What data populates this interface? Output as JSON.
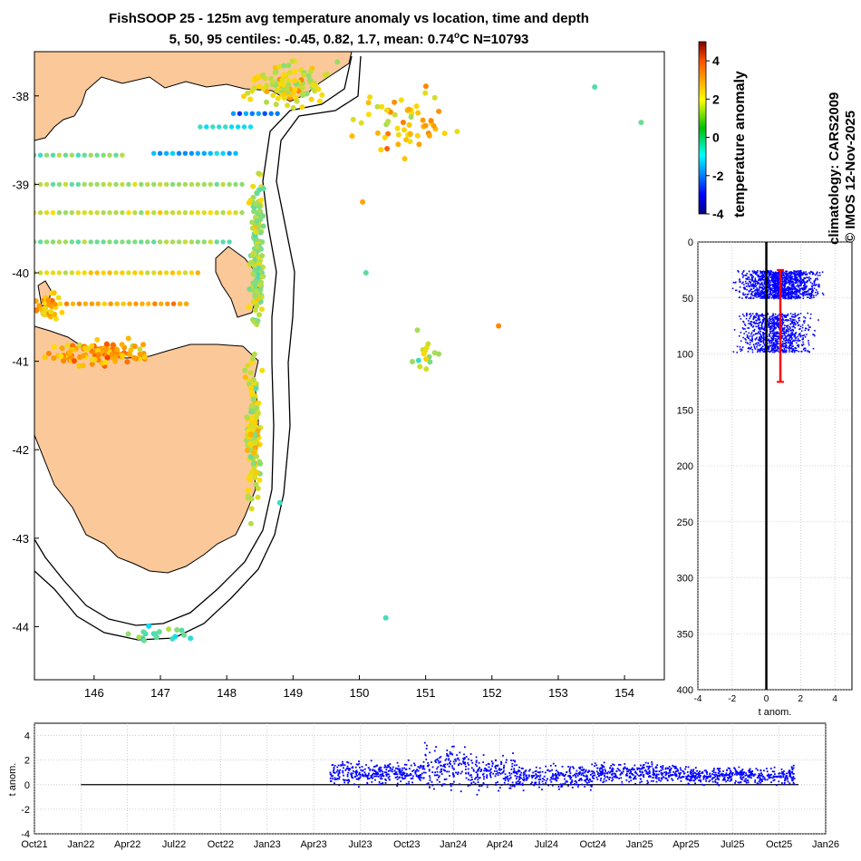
{
  "header": {
    "title_line1": "FishSOOP 25 - 125m avg temperature anomaly vs location, time and depth",
    "title_line2_prefix": "5, 50, 95 centiles: -0.45, 0.82, 1.7, mean: 0.74",
    "title_line2_sup": "o",
    "title_line2_suffix": "C N=10793"
  },
  "side_labels": {
    "colorbar_label": "temperature anomaly",
    "climatology": "climatology: CARS2009",
    "credit": "© IMOS 12-Nov-2025"
  },
  "colors": {
    "land": "#fbc899",
    "ocean": "#ffffff",
    "points": "#0000ff",
    "median_bar": "#ff0000",
    "zero_line": "#000000"
  },
  "chart_data": [
    {
      "type": "scatter",
      "name": "map",
      "xlim": [
        145.1,
        154.6
      ],
      "ylim": [
        -44.6,
        -37.5
      ],
      "xticks": [
        146,
        147,
        148,
        149,
        150,
        151,
        152,
        153,
        154
      ],
      "yticks": [
        -38,
        -39,
        -40,
        -41,
        -42,
        -43,
        -44
      ],
      "colormap": "jet",
      "clim": [
        -4,
        5
      ],
      "colorbar_ticks": [
        4,
        2,
        0,
        -2,
        -4
      ],
      "tracks": [
        {
          "lat": -38.2,
          "lon_start": 148.1,
          "lon_end": 148.8,
          "anomaly": -1.5
        },
        {
          "lat": -38.35,
          "lon_start": 147.6,
          "lon_end": 148.4,
          "anomaly": -0.5
        },
        {
          "lat": -38.65,
          "lon_start": 146.9,
          "lon_end": 148.2,
          "anomaly": -1.0
        },
        {
          "lat": -38.67,
          "lon_start": 145.0,
          "lon_end": 146.5,
          "anomaly": 0.5
        },
        {
          "lat": -39.0,
          "lon_start": 145.0,
          "lon_end": 148.3,
          "anomaly": 0.8
        },
        {
          "lat": -39.32,
          "lon_start": 145.0,
          "lon_end": 148.3,
          "anomaly": 1.2
        },
        {
          "lat": -39.65,
          "lon_start": 145.0,
          "lon_end": 148.1,
          "anomaly": 0.6
        },
        {
          "lat": -40.0,
          "lon_start": 145.0,
          "lon_end": 147.6,
          "anomaly": 1.6
        },
        {
          "lat": -40.35,
          "lon_start": 145.3,
          "lon_end": 147.4,
          "anomaly": 2.0
        }
      ],
      "clusters": [
        {
          "lon": 148.9,
          "lat": -37.9,
          "spread_lon": 0.9,
          "spread_lat": 0.35,
          "count": 110,
          "anomaly": 1.5
        },
        {
          "lon": 150.7,
          "lat": -38.3,
          "spread_lon": 1.0,
          "spread_lat": 0.5,
          "count": 60,
          "anomaly": 1.8
        },
        {
          "lon": 148.45,
          "lat": -39.8,
          "spread_lon": 0.15,
          "spread_lat": 1.2,
          "count": 150,
          "anomaly": 0.8
        },
        {
          "lon": 146.0,
          "lat": -40.9,
          "spread_lon": 1.0,
          "spread_lat": 0.2,
          "count": 120,
          "anomaly": 2.2
        },
        {
          "lon": 145.3,
          "lat": -40.4,
          "spread_lon": 0.25,
          "spread_lat": 0.2,
          "count": 40,
          "anomaly": 2.0
        },
        {
          "lon": 148.4,
          "lat": -41.8,
          "spread_lon": 0.15,
          "spread_lat": 1.1,
          "count": 130,
          "anomaly": 1.3
        },
        {
          "lon": 151.0,
          "lat": -40.9,
          "spread_lon": 0.4,
          "spread_lat": 0.3,
          "count": 15,
          "anomaly": 1.0
        },
        {
          "lon": 147.0,
          "lat": -44.1,
          "spread_lon": 1.0,
          "spread_lat": 0.15,
          "count": 20,
          "anomaly": 0.2
        }
      ],
      "isolated_points": [
        {
          "lon": 153.55,
          "lat": -37.9,
          "anomaly": 0.1
        },
        {
          "lon": 154.25,
          "lat": -38.3,
          "anomaly": 0.3
        },
        {
          "lon": 150.1,
          "lat": -40.0,
          "anomaly": 0.2
        },
        {
          "lon": 150.4,
          "lat": -43.9,
          "anomaly": 0.0
        },
        {
          "lon": 148.8,
          "lat": -42.6,
          "anomaly": -0.1
        },
        {
          "lon": 152.1,
          "lat": -40.6,
          "anomaly": 2.5
        },
        {
          "lon": 150.05,
          "lat": -39.2,
          "anomaly": 2.2
        }
      ]
    },
    {
      "type": "scatter",
      "name": "depth_profile",
      "xlabel": "t anom.",
      "xlim": [
        -4,
        5
      ],
      "ylim": [
        0,
        400
      ],
      "xticks": [
        -4,
        -2,
        0,
        2,
        4
      ],
      "yticks": [
        0,
        50,
        100,
        150,
        200,
        250,
        300,
        350,
        400
      ],
      "clusters": [
        {
          "depth_min": 25,
          "depth_max": 50,
          "t_min": -2.0,
          "t_max": 3.5,
          "count": 1300
        },
        {
          "depth_min": 63,
          "depth_max": 98,
          "t_min": -2.0,
          "t_max": 3.0,
          "count": 900
        }
      ],
      "median_bar": {
        "x": 0.82,
        "depth_top": 25,
        "depth_bottom": 125
      }
    },
    {
      "type": "scatter",
      "name": "time_series",
      "ylabel": "t anom.",
      "ylim": [
        -4,
        5
      ],
      "yticks": [
        4,
        2,
        0,
        -2,
        -4
      ],
      "xticks": [
        "Oct21",
        "Jan22",
        "Apr22",
        "Jul22",
        "Oct22",
        "Jan23",
        "Apr23",
        "Jul23",
        "Oct23",
        "Jan24",
        "Apr24",
        "Jul24",
        "Oct24",
        "Jan25",
        "Apr25",
        "Jul25",
        "Oct25",
        "Jan26"
      ],
      "x_start": "2021-10",
      "x_end": "2026-01",
      "data_start": "2023-05",
      "data_end": "2025-11",
      "segments": [
        {
          "from": "2023-05",
          "to": "2023-11",
          "mean": 1.0,
          "spread": 0.8
        },
        {
          "from": "2023-11",
          "to": "2024-02",
          "mean": 1.5,
          "spread": 1.5
        },
        {
          "from": "2024-02",
          "to": "2024-05",
          "mean": 1.0,
          "spread": 1.3
        },
        {
          "from": "2024-05",
          "to": "2024-10",
          "mean": 0.7,
          "spread": 0.8
        },
        {
          "from": "2024-10",
          "to": "2025-04",
          "mean": 1.0,
          "spread": 0.7
        },
        {
          "from": "2025-04",
          "to": "2025-11",
          "mean": 0.8,
          "spread": 0.6
        }
      ]
    }
  ]
}
